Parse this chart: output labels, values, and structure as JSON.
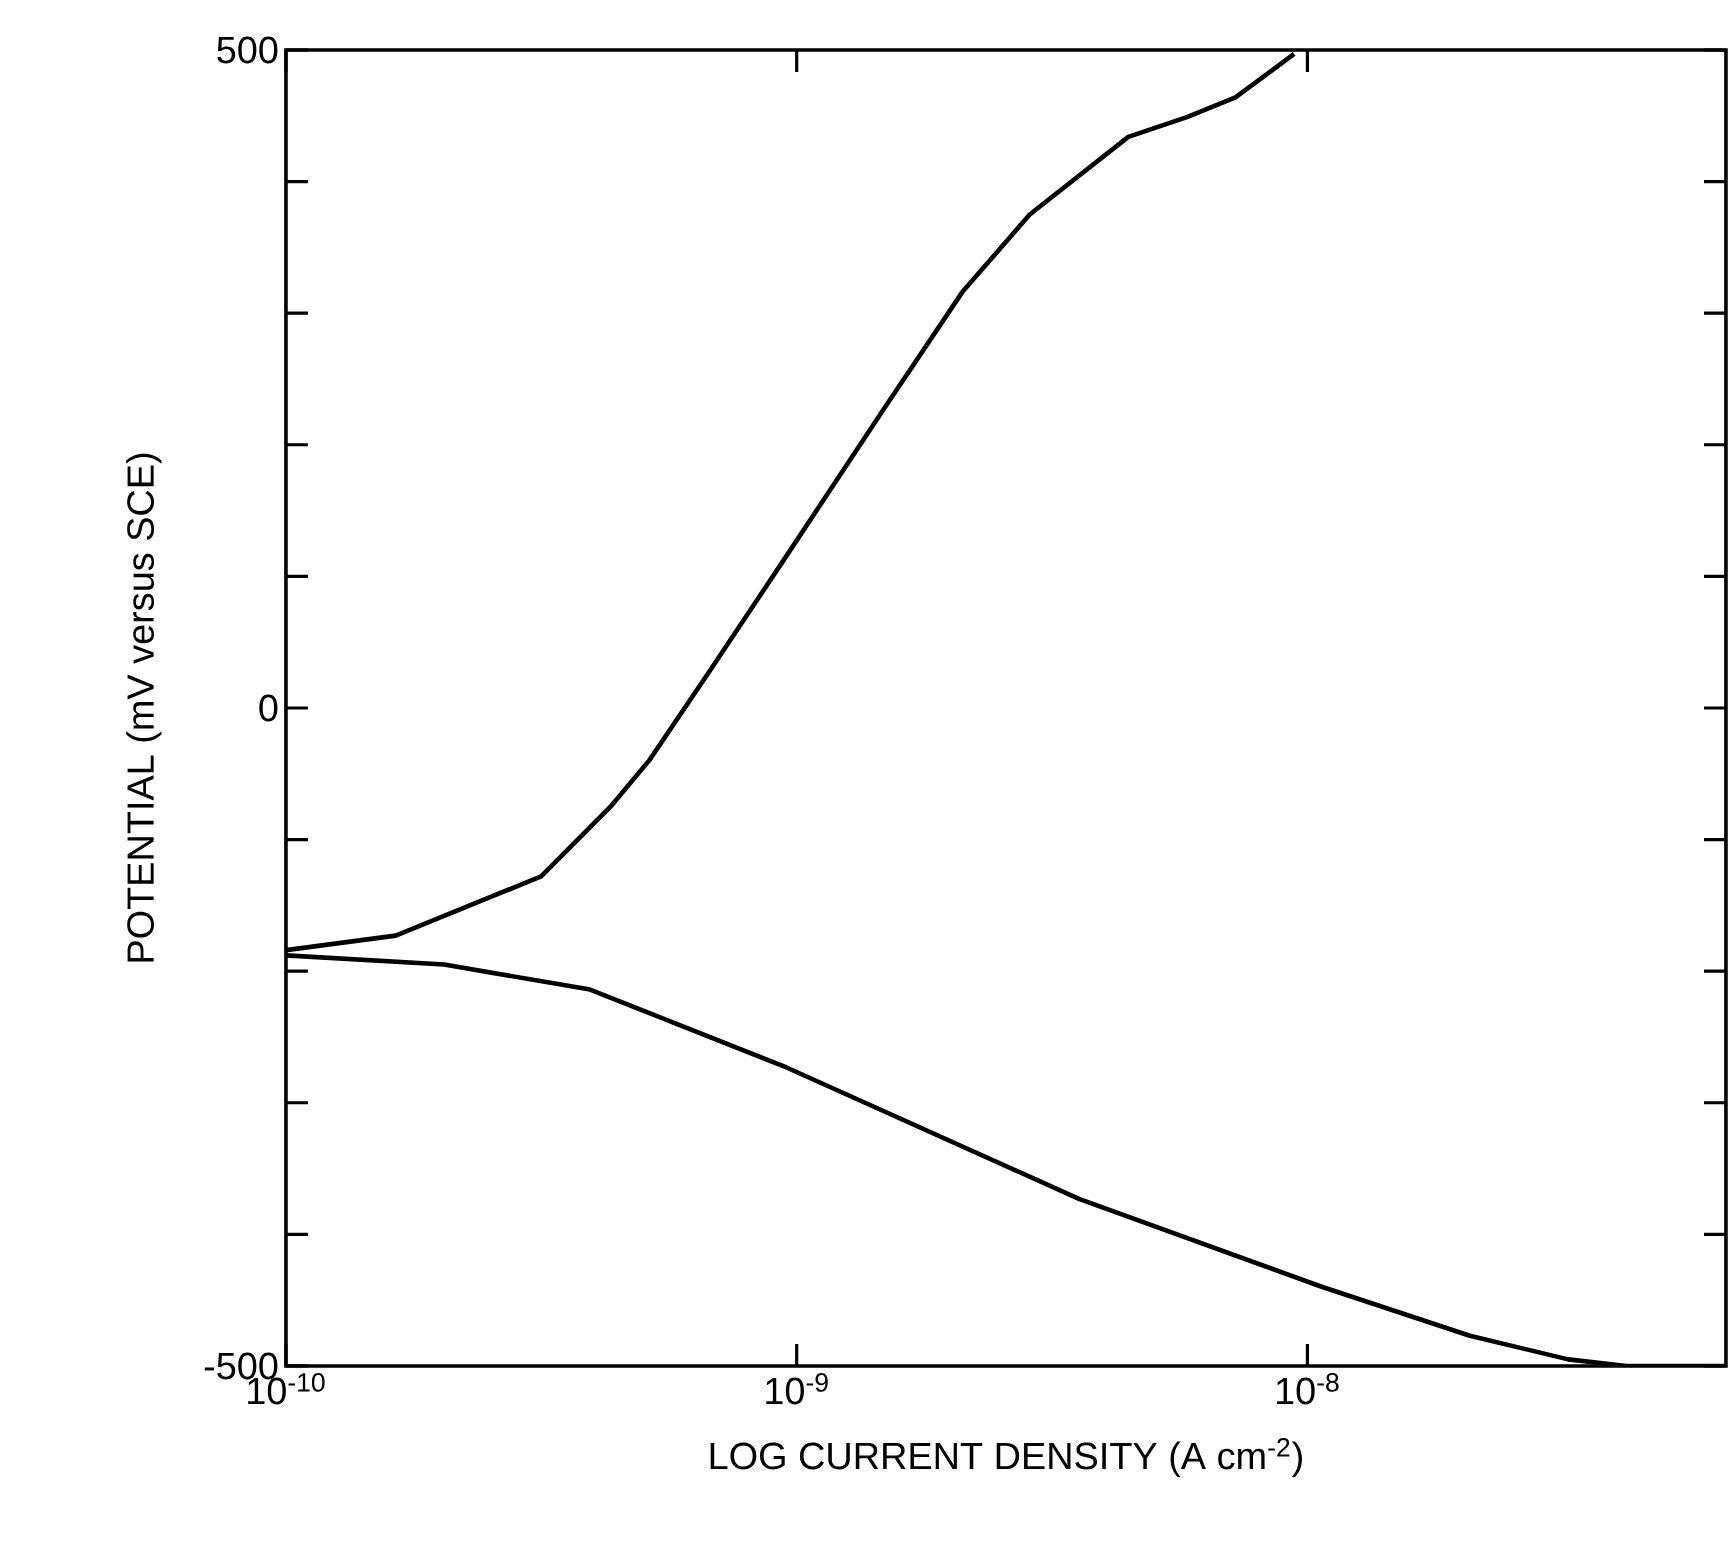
{
  "chart_data": {
    "type": "line",
    "xlabel": "LOG CURRENT DENSITY (A cm$^{-2}$)",
    "ylabel": "POTENTIAL (mV versus SCE)",
    "log": "x",
    "marker": "none",
    "line_style": "solid",
    "xlim": [
      1e-10,
      6.6e-08
    ],
    "ylim": [
      -500,
      500
    ],
    "xticks": [
      {
        "value": 1e-10,
        "label": "10$^{-10}$"
      },
      {
        "value": 1e-09,
        "label": "10$^{-9}$"
      },
      {
        "value": 1e-08,
        "label": "10$^{-8}$"
      }
    ],
    "yticks": [
      -500,
      {
        "value": -400,
        "label": null
      },
      {
        "value": -300,
        "label": null
      },
      {
        "value": -200,
        "label": null
      },
      {
        "value": -100,
        "label": null
      },
      0,
      {
        "value": 100,
        "label": null
      },
      {
        "value": 200,
        "label": null
      },
      {
        "value": 300,
        "label": null
      },
      {
        "value": 400,
        "label": null
      },
      500
    ],
    "series": [
      {
        "color": "#000000",
        "x": [
          1e-10,
          1.64e-10,
          3.16e-10,
          4.32e-10,
          5.14e-10,
          6.7e-10,
          9.53e-10,
          1.48e-09,
          2.11e-09,
          2.86e-09,
          4.46e-09,
          5.81e-09,
          7.23e-09,
          9.42e-09
        ],
        "values": [
          -184,
          -173,
          -128,
          -75,
          -40,
          26,
          115,
          227,
          316,
          375,
          434,
          449,
          464,
          497
        ]
      },
      {
        "color": "#000000",
        "x": [
          1e-10,
          2.04e-10,
          3.94e-10,
          9.53e-10,
          3.57e-09,
          1.07e-08,
          2.08e-08,
          3.24e-08,
          4.21e-08,
          6.6e-08
        ],
        "values": [
          -188,
          -195,
          -214,
          -273,
          -373,
          -440,
          -477,
          -495,
          -500,
          -500
        ]
      }
    ]
  }
}
